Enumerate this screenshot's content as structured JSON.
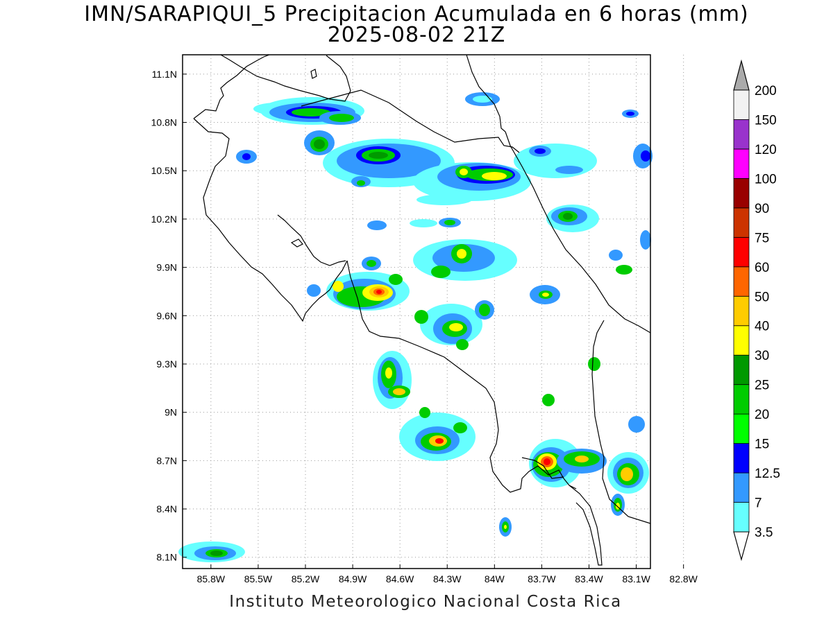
{
  "title_line1": "IMN/SARAPIQUI_5 Precipitacion Acumulada en 6 horas (mm)",
  "title_line2": "2025-08-02 21Z",
  "footer": "Instituto Meteorologico Nacional Costa Rica",
  "map": {
    "lon_range": [
      -85.98,
      -83.01
    ],
    "lat_range": [
      8.03,
      11.22
    ],
    "lon_ticks": [
      {
        "value": -85.8,
        "label": "85.8W"
      },
      {
        "value": -85.5,
        "label": "85.5W"
      },
      {
        "value": -85.2,
        "label": "85.2W"
      },
      {
        "value": -84.9,
        "label": "84.9W"
      },
      {
        "value": -84.6,
        "label": "84.6W"
      },
      {
        "value": -84.3,
        "label": "84.3W"
      },
      {
        "value": -84.0,
        "label": "84W"
      },
      {
        "value": -83.7,
        "label": "83.7W"
      },
      {
        "value": -83.4,
        "label": "83.4W"
      },
      {
        "value": -83.1,
        "label": "83.1W"
      },
      {
        "value": -82.8,
        "label": "82.8W"
      }
    ],
    "lat_ticks": [
      {
        "value": 11.1,
        "label": "11.1N"
      },
      {
        "value": 10.8,
        "label": "10.8N"
      },
      {
        "value": 10.5,
        "label": "10.5N"
      },
      {
        "value": 10.2,
        "label": "10.2N"
      },
      {
        "value": 9.9,
        "label": "9.9N"
      },
      {
        "value": 9.6,
        "label": "9.6N"
      },
      {
        "value": 9.3,
        "label": "9.3N"
      },
      {
        "value": 9.0,
        "label": "9N"
      },
      {
        "value": 8.7,
        "label": "8.7N"
      },
      {
        "value": 8.4,
        "label": "8.4N"
      },
      {
        "value": 8.1,
        "label": "8.1N"
      }
    ],
    "grid": true
  },
  "colorbar": {
    "levels": [
      {
        "label": "3.5",
        "color": "#66ffff"
      },
      {
        "label": "7",
        "color": "#3399ff"
      },
      {
        "label": "12.5",
        "color": "#0000ff"
      },
      {
        "label": "15",
        "color": "#00ff00"
      },
      {
        "label": "20",
        "color": "#00cc00"
      },
      {
        "label": "25",
        "color": "#009900"
      },
      {
        "label": "30",
        "color": "#ffff00"
      },
      {
        "label": "40",
        "color": "#ffcc00"
      },
      {
        "label": "50",
        "color": "#ff6600"
      },
      {
        "label": "60",
        "color": "#ff0000"
      },
      {
        "label": "75",
        "color": "#cc3300"
      },
      {
        "label": "90",
        "color": "#990000"
      },
      {
        "label": "100",
        "color": "#ff00ff"
      },
      {
        "label": "120",
        "color": "#9933cc"
      },
      {
        "label": "150",
        "color": "#f2f2f2"
      },
      {
        "label": "200",
        "color": "#aaaaaa"
      }
    ]
  }
}
